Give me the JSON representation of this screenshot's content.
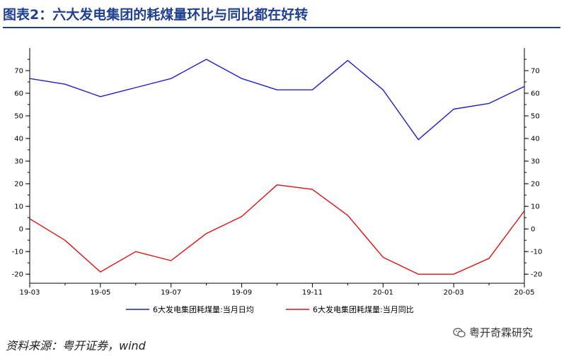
{
  "title": "图表2：六大发电集团的耗煤量环比与同比都在好转",
  "source": "资料来源：粤开证券，wind",
  "watermark": "粤开奇霖研究",
  "chart_data": {
    "type": "line",
    "x": [
      "19-03",
      "19-04",
      "19-05",
      "19-06",
      "19-07",
      "19-08",
      "19-09",
      "19-10",
      "19-11",
      "19-12",
      "20-01",
      "20-02",
      "20-03",
      "20-04",
      "20-05"
    ],
    "x_tick_labels": [
      "19-03",
      "19-05",
      "19-07",
      "19-09",
      "19-11",
      "20-01",
      "20-03",
      "20-05"
    ],
    "ylim": [
      -24,
      80
    ],
    "y_ticks": [
      -20,
      -10,
      0,
      10,
      20,
      30,
      40,
      50,
      60,
      70
    ],
    "series": [
      {
        "name": "6大发电集团耗煤量:当月日均",
        "color": "#1f1fcc",
        "values": [
          66.5,
          64,
          58.5,
          62.5,
          66.5,
          75,
          66.5,
          61.5,
          61.5,
          74.5,
          61.5,
          39.5,
          53,
          55.5,
          63
        ]
      },
      {
        "name": "6大发电集团耗煤量:当月同比",
        "color": "#e01010",
        "values": [
          4.5,
          -5,
          -19,
          -10,
          -14,
          -2,
          5.5,
          19.5,
          17.5,
          6,
          -12.5,
          -20,
          -20,
          -13,
          8
        ]
      }
    ],
    "grid": false,
    "legend": "bottom"
  }
}
